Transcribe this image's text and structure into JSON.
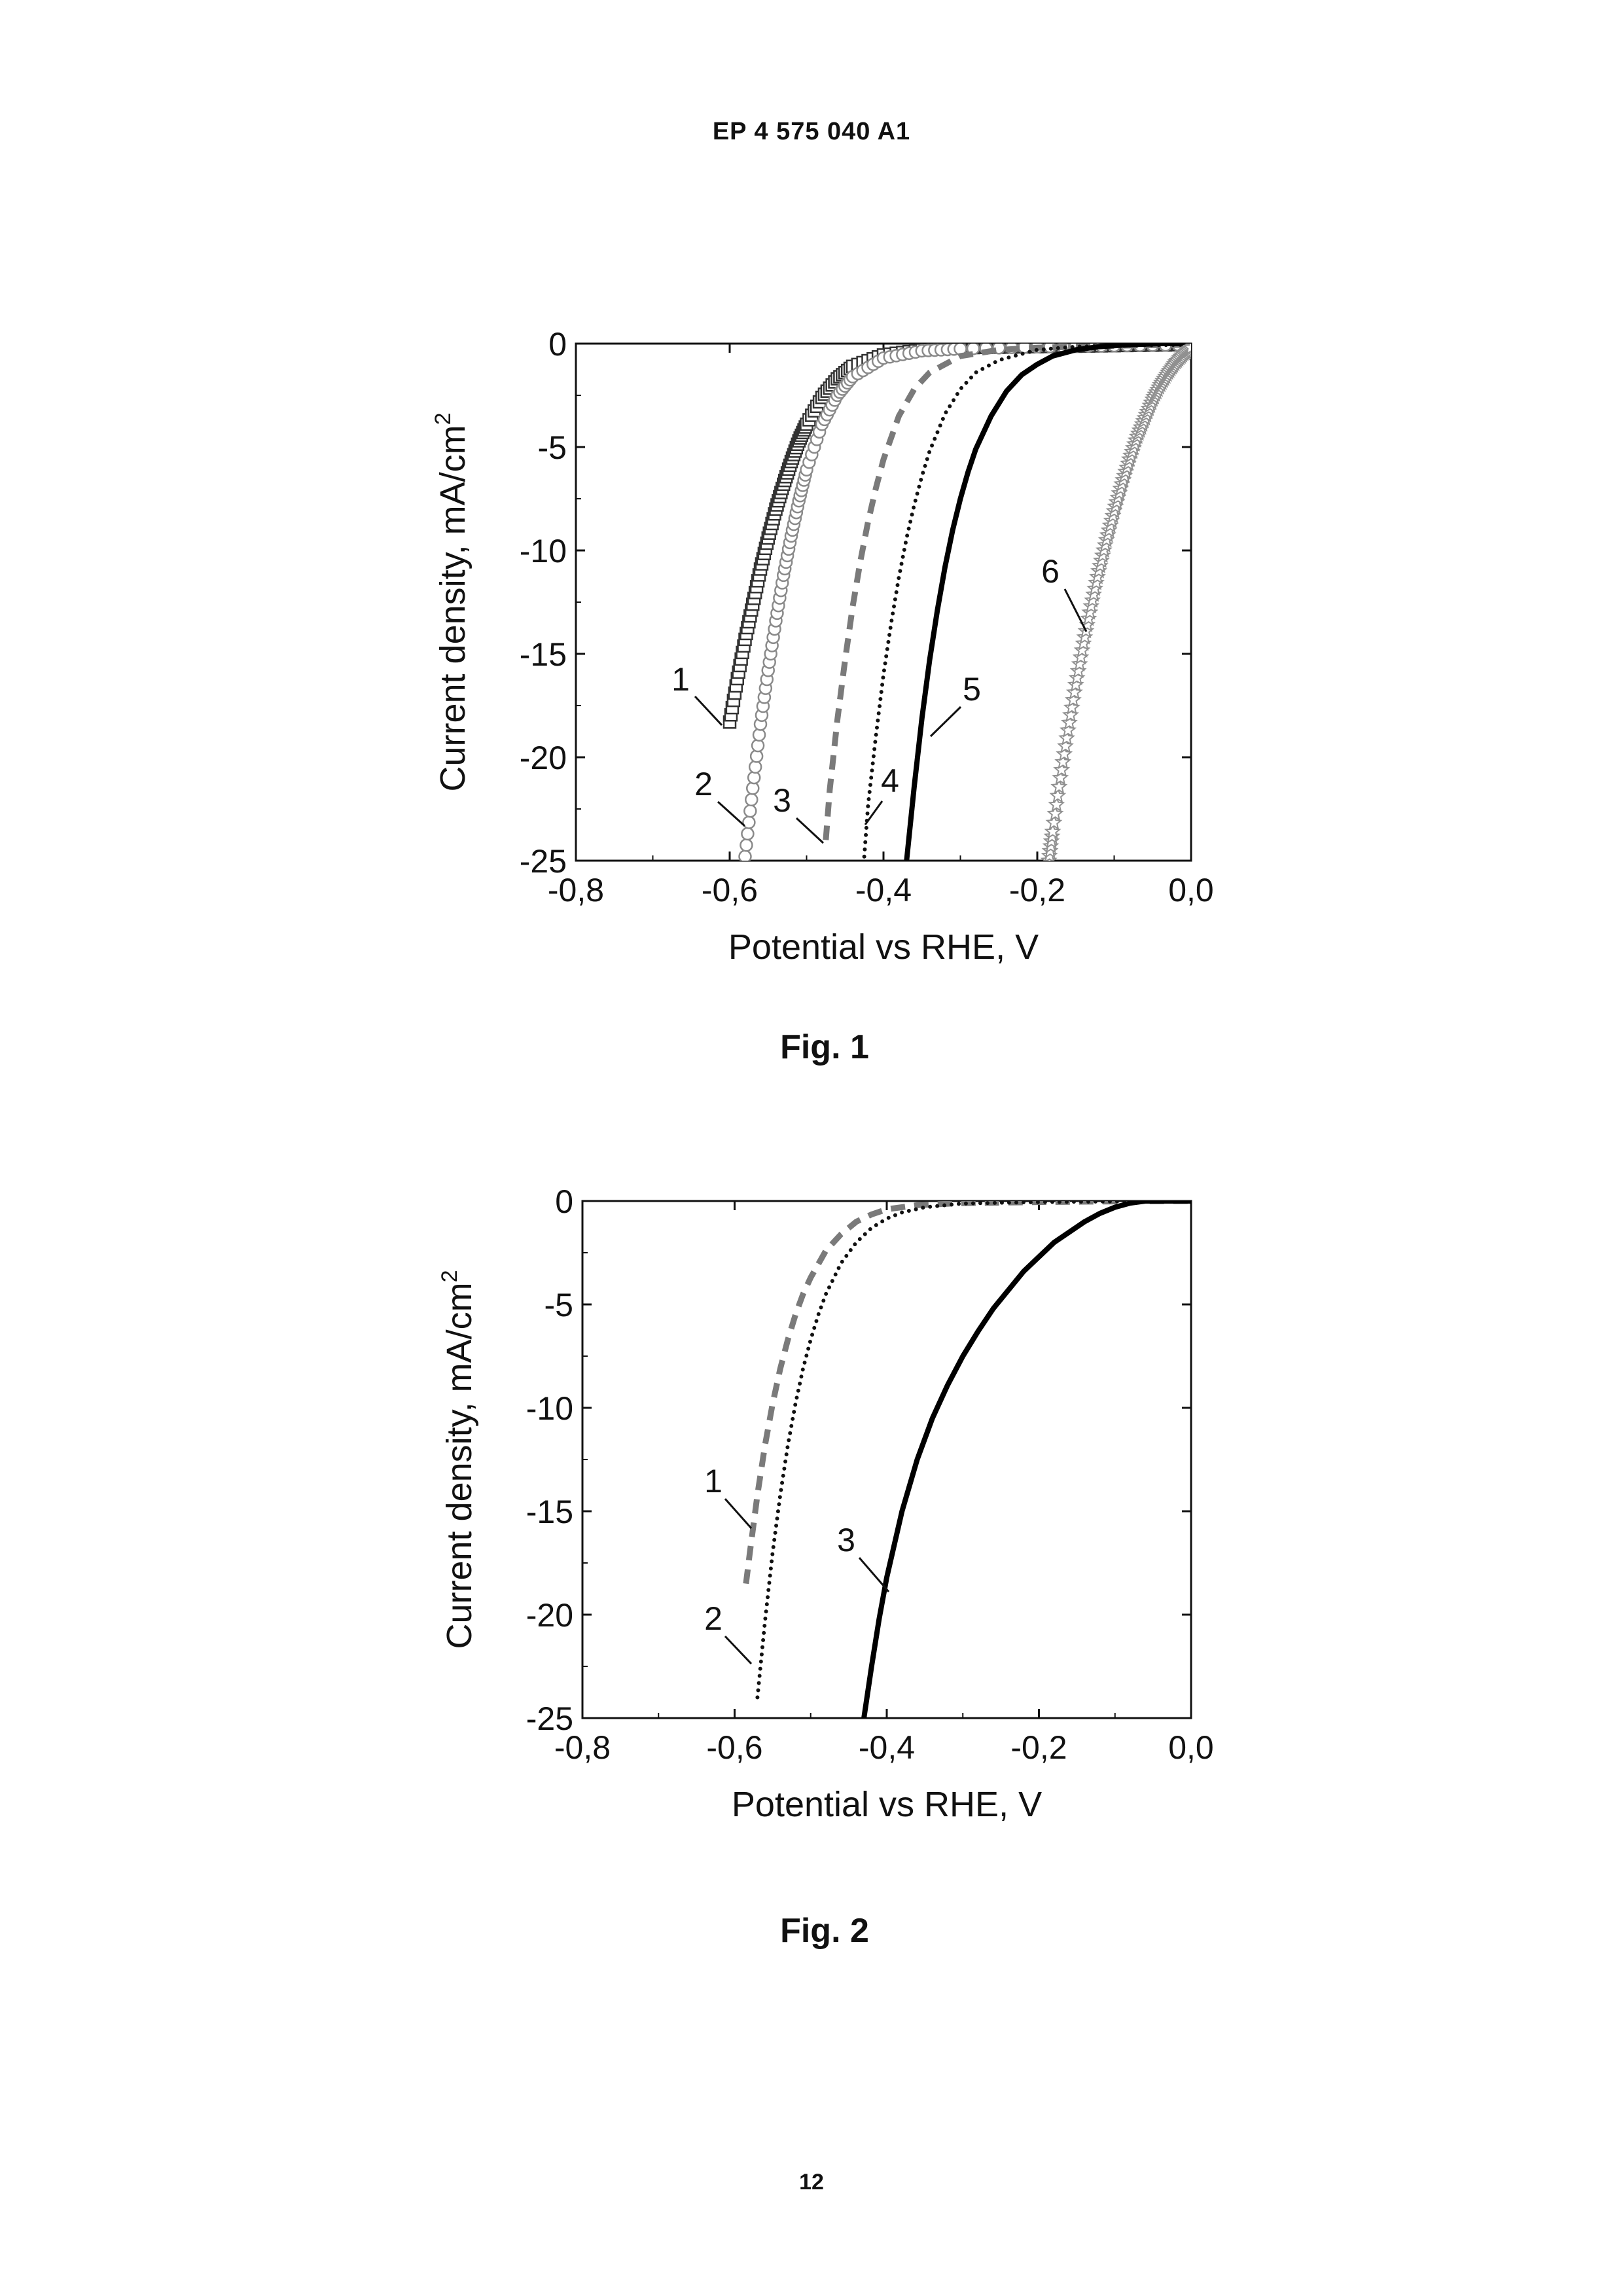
{
  "header": {
    "doc_id": "EP 4 575 040 A1"
  },
  "page_number": "12",
  "chart_data": [
    {
      "type": "line",
      "caption": "Fig. 1",
      "xlabel": "Potential vs RHE, V",
      "ylabel": "Current density, mA/cm",
      "ylabel_superscript": "2",
      "xlim": [
        -0.8,
        0.0
      ],
      "ylim": [
        -25,
        0
      ],
      "xticks": [
        -0.8,
        -0.6,
        -0.4,
        -0.2,
        0.0
      ],
      "xtick_labels": [
        "-0,8",
        "-0,6",
        "-0,4",
        "-0,2",
        "0,0"
      ],
      "yticks": [
        0,
        -5,
        -10,
        -15,
        -20,
        -25
      ],
      "ytick_labels": [
        "0",
        "-5",
        "-10",
        "-15",
        "-20",
        "-25"
      ],
      "grid": false,
      "series": [
        {
          "label": "1",
          "style": "open-square",
          "color": "#333333",
          "x": [
            -0.6,
            -0.59,
            -0.58,
            -0.57,
            -0.56,
            -0.55,
            -0.54,
            -0.53,
            -0.52,
            -0.51,
            -0.5,
            -0.48,
            -0.46,
            -0.44,
            -0.4,
            -0.35,
            -0.3,
            -0.2,
            -0.1,
            0.0
          ],
          "y": [
            -18.3,
            -16.2,
            -14.3,
            -12.6,
            -10.9,
            -9.4,
            -8.0,
            -6.8,
            -5.7,
            -4.7,
            -3.9,
            -2.6,
            -1.7,
            -1.1,
            -0.55,
            -0.3,
            -0.2,
            -0.15,
            -0.1,
            -0.05
          ]
        },
        {
          "label": "2",
          "style": "open-circle",
          "color": "#8a8a8a",
          "x": [
            -0.58,
            -0.57,
            -0.56,
            -0.55,
            -0.54,
            -0.53,
            -0.52,
            -0.51,
            -0.5,
            -0.48,
            -0.46,
            -0.44,
            -0.4,
            -0.35,
            -0.3,
            -0.2,
            -0.1,
            0.0
          ],
          "y": [
            -24.8,
            -21.5,
            -18.4,
            -15.8,
            -13.4,
            -11.2,
            -9.3,
            -7.6,
            -6.1,
            -3.9,
            -2.5,
            -1.6,
            -0.7,
            -0.35,
            -0.25,
            -0.15,
            -0.1,
            -0.05
          ]
        },
        {
          "label": "3",
          "style": "dashed",
          "color": "#7a7a7a",
          "x": [
            -0.475,
            -0.47,
            -0.46,
            -0.45,
            -0.44,
            -0.43,
            -0.42,
            -0.41,
            -0.4,
            -0.38,
            -0.36,
            -0.34,
            -0.3,
            -0.25,
            -0.2,
            -0.1,
            0.0
          ],
          "y": [
            -24.0,
            -21.6,
            -18.2,
            -15.3,
            -12.7,
            -10.5,
            -8.6,
            -7.0,
            -5.6,
            -3.5,
            -2.2,
            -1.4,
            -0.6,
            -0.3,
            -0.2,
            -0.1,
            -0.05
          ]
        },
        {
          "label": "4",
          "style": "dotted",
          "color": "#111111",
          "x": [
            -0.425,
            -0.42,
            -0.41,
            -0.4,
            -0.39,
            -0.38,
            -0.37,
            -0.36,
            -0.35,
            -0.34,
            -0.32,
            -0.3,
            -0.28,
            -0.25,
            -0.2,
            -0.15,
            -0.1,
            0.0
          ],
          "y": [
            -24.8,
            -22.3,
            -19.0,
            -16.0,
            -13.5,
            -11.3,
            -9.4,
            -7.8,
            -6.4,
            -5.2,
            -3.4,
            -2.2,
            -1.4,
            -0.8,
            -0.3,
            -0.15,
            -0.1,
            -0.05
          ]
        },
        {
          "label": "5",
          "style": "solid",
          "color": "#000000",
          "x": [
            -0.37,
            -0.36,
            -0.35,
            -0.34,
            -0.33,
            -0.32,
            -0.31,
            -0.3,
            -0.29,
            -0.28,
            -0.26,
            -0.24,
            -0.22,
            -0.2,
            -0.18,
            -0.15,
            -0.12,
            -0.08,
            -0.04,
            0.0
          ],
          "y": [
            -25.0,
            -21.4,
            -18.1,
            -15.3,
            -12.9,
            -10.8,
            -9.0,
            -7.5,
            -6.2,
            -5.1,
            -3.5,
            -2.3,
            -1.5,
            -1.0,
            -0.6,
            -0.3,
            -0.15,
            -0.05,
            0.0,
            0.0
          ]
        },
        {
          "label": "6",
          "style": "open-star-dash",
          "color": "#909090",
          "x": [
            -0.185,
            -0.18,
            -0.17,
            -0.16,
            -0.15,
            -0.14,
            -0.13,
            -0.12,
            -0.11,
            -0.1,
            -0.09,
            -0.08,
            -0.07,
            -0.06,
            -0.05,
            -0.04,
            -0.03,
            -0.02,
            -0.01,
            0.0
          ],
          "y": [
            -25.0,
            -23.6,
            -21.0,
            -18.7,
            -16.5,
            -14.5,
            -12.7,
            -11.0,
            -9.5,
            -8.1,
            -6.8,
            -5.6,
            -4.5,
            -3.6,
            -2.7,
            -2.0,
            -1.4,
            -0.9,
            -0.5,
            -0.2
          ]
        }
      ]
    },
    {
      "type": "line",
      "caption": "Fig. 2",
      "xlabel": "Potential vs RHE, V",
      "ylabel": "Current density, mA/cm",
      "ylabel_superscript": "2",
      "xlim": [
        -0.8,
        0.0
      ],
      "ylim": [
        -25,
        0
      ],
      "xticks": [
        -0.8,
        -0.6,
        -0.4,
        -0.2,
        0.0
      ],
      "xtick_labels": [
        "-0,8",
        "-0,6",
        "-0,4",
        "-0,2",
        "0,0"
      ],
      "yticks": [
        0,
        -5,
        -10,
        -15,
        -20,
        -25
      ],
      "ytick_labels": [
        "0",
        "-5",
        "-10",
        "-15",
        "-20",
        "-25"
      ],
      "grid": false,
      "series": [
        {
          "label": "1",
          "style": "dashed",
          "color": "#7a7a7a",
          "x": [
            -0.585,
            -0.58,
            -0.57,
            -0.56,
            -0.55,
            -0.54,
            -0.53,
            -0.52,
            -0.51,
            -0.5,
            -0.48,
            -0.46,
            -0.44,
            -0.42,
            -0.4,
            -0.36,
            -0.3,
            -0.2,
            -0.1,
            0.0
          ],
          "y": [
            -18.5,
            -17.0,
            -14.2,
            -11.8,
            -9.8,
            -8.1,
            -6.7,
            -5.5,
            -4.5,
            -3.7,
            -2.4,
            -1.6,
            -1.0,
            -0.65,
            -0.4,
            -0.2,
            -0.1,
            -0.05,
            -0.02,
            0.0
          ]
        },
        {
          "label": "2",
          "style": "dotted",
          "color": "#111111",
          "x": [
            -0.57,
            -0.56,
            -0.55,
            -0.54,
            -0.53,
            -0.52,
            -0.51,
            -0.5,
            -0.49,
            -0.48,
            -0.46,
            -0.44,
            -0.42,
            -0.4,
            -0.38,
            -0.35,
            -0.3,
            -0.2,
            -0.1,
            0.0
          ],
          "y": [
            -24.0,
            -20.3,
            -17.0,
            -14.2,
            -11.8,
            -9.8,
            -8.1,
            -6.7,
            -5.5,
            -4.5,
            -3.0,
            -2.0,
            -1.3,
            -0.85,
            -0.55,
            -0.3,
            -0.12,
            -0.05,
            -0.02,
            0.0
          ]
        },
        {
          "label": "3",
          "style": "solid",
          "color": "#000000",
          "x": [
            -0.43,
            -0.42,
            -0.41,
            -0.4,
            -0.38,
            -0.36,
            -0.34,
            -0.32,
            -0.3,
            -0.28,
            -0.26,
            -0.24,
            -0.22,
            -0.2,
            -0.18,
            -0.16,
            -0.14,
            -0.12,
            -0.1,
            -0.08,
            -0.06,
            -0.04,
            -0.02,
            0.0
          ],
          "y": [
            -25.0,
            -22.5,
            -20.2,
            -18.2,
            -15.0,
            -12.5,
            -10.5,
            -8.9,
            -7.5,
            -6.3,
            -5.2,
            -4.3,
            -3.4,
            -2.7,
            -2.0,
            -1.5,
            -1.0,
            -0.6,
            -0.3,
            -0.1,
            0.0,
            0.0,
            0.0,
            0.0
          ]
        }
      ]
    }
  ]
}
